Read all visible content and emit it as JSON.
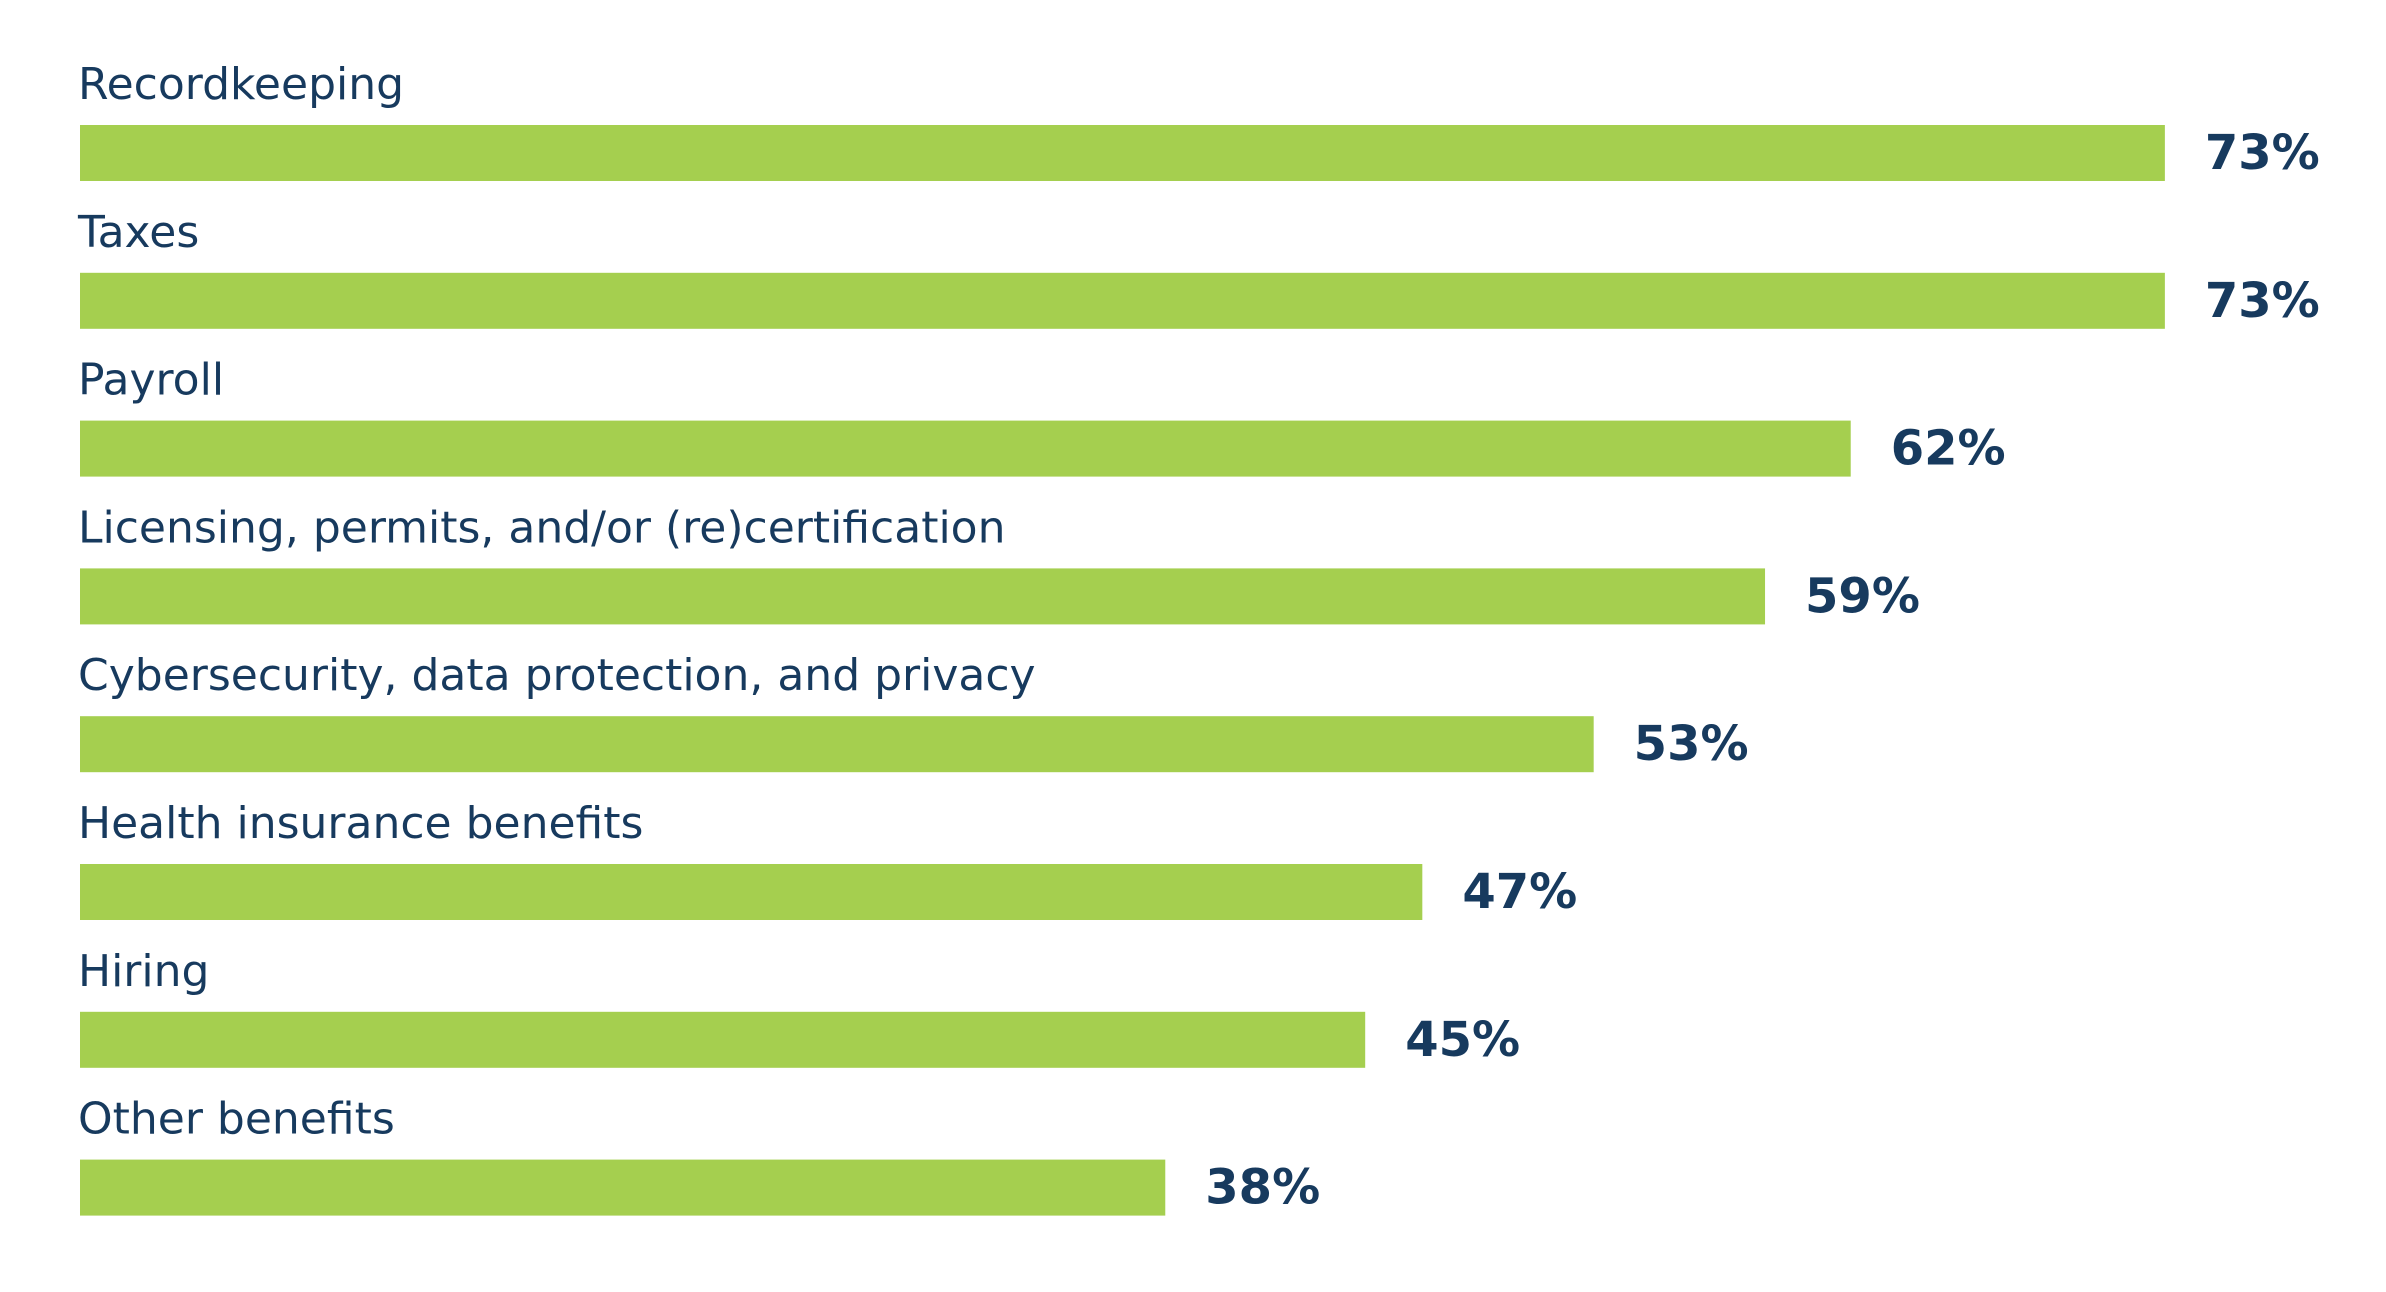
{
  "chart_data": {
    "type": "bar",
    "orientation": "horizontal",
    "categories": [
      "Recordkeeping",
      "Taxes",
      "Payroll",
      "Licensing, permits, and/or (re)certification",
      "Cybersecurity, data protection, and privacy",
      "Health insurance benefits",
      "Hiring",
      "Other benefits"
    ],
    "values": [
      73,
      73,
      62,
      59,
      53,
      47,
      45,
      38
    ],
    "value_labels": [
      "73%",
      "73%",
      "62%",
      "59%",
      "53%",
      "47%",
      "45%",
      "38%"
    ],
    "color": "#a5cf4f"
  }
}
